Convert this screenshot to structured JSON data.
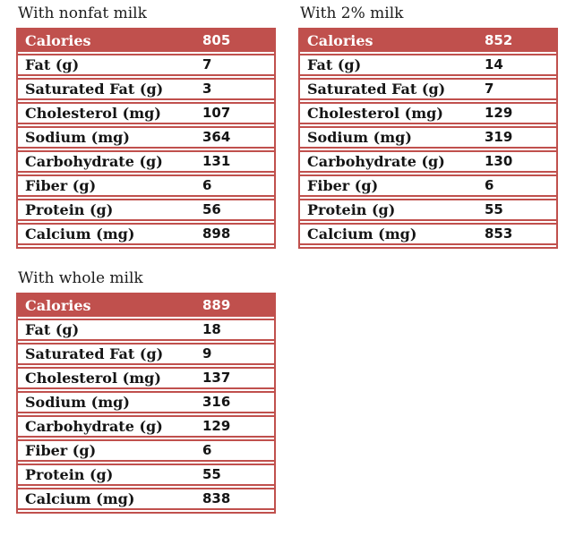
{
  "colors": {
    "accent": "#c0504d",
    "header_text": "#ffffff",
    "label_text": "#151515",
    "background": "#ffffff"
  },
  "row_labels": [
    "Calories",
    "Fat (g)",
    "Saturated Fat (g)",
    "Cholesterol (mg)",
    "Sodium (mg)",
    "Carbohydrate (g)",
    "Fiber (g)",
    "Protein (g)",
    "Calcium (mg)"
  ],
  "tables": [
    {
      "title": "With nonfat milk",
      "values": [
        "805",
        "7",
        "3",
        "107",
        "364",
        "131",
        "6",
        "56",
        "898"
      ]
    },
    {
      "title": "With 2% milk",
      "values": [
        "852",
        "14",
        "7",
        "129",
        "319",
        "130",
        "6",
        "55",
        "853"
      ]
    },
    {
      "title": "With whole milk",
      "values": [
        "889",
        "18",
        "9",
        "137",
        "316",
        "129",
        "6",
        "55",
        "838"
      ]
    }
  ]
}
